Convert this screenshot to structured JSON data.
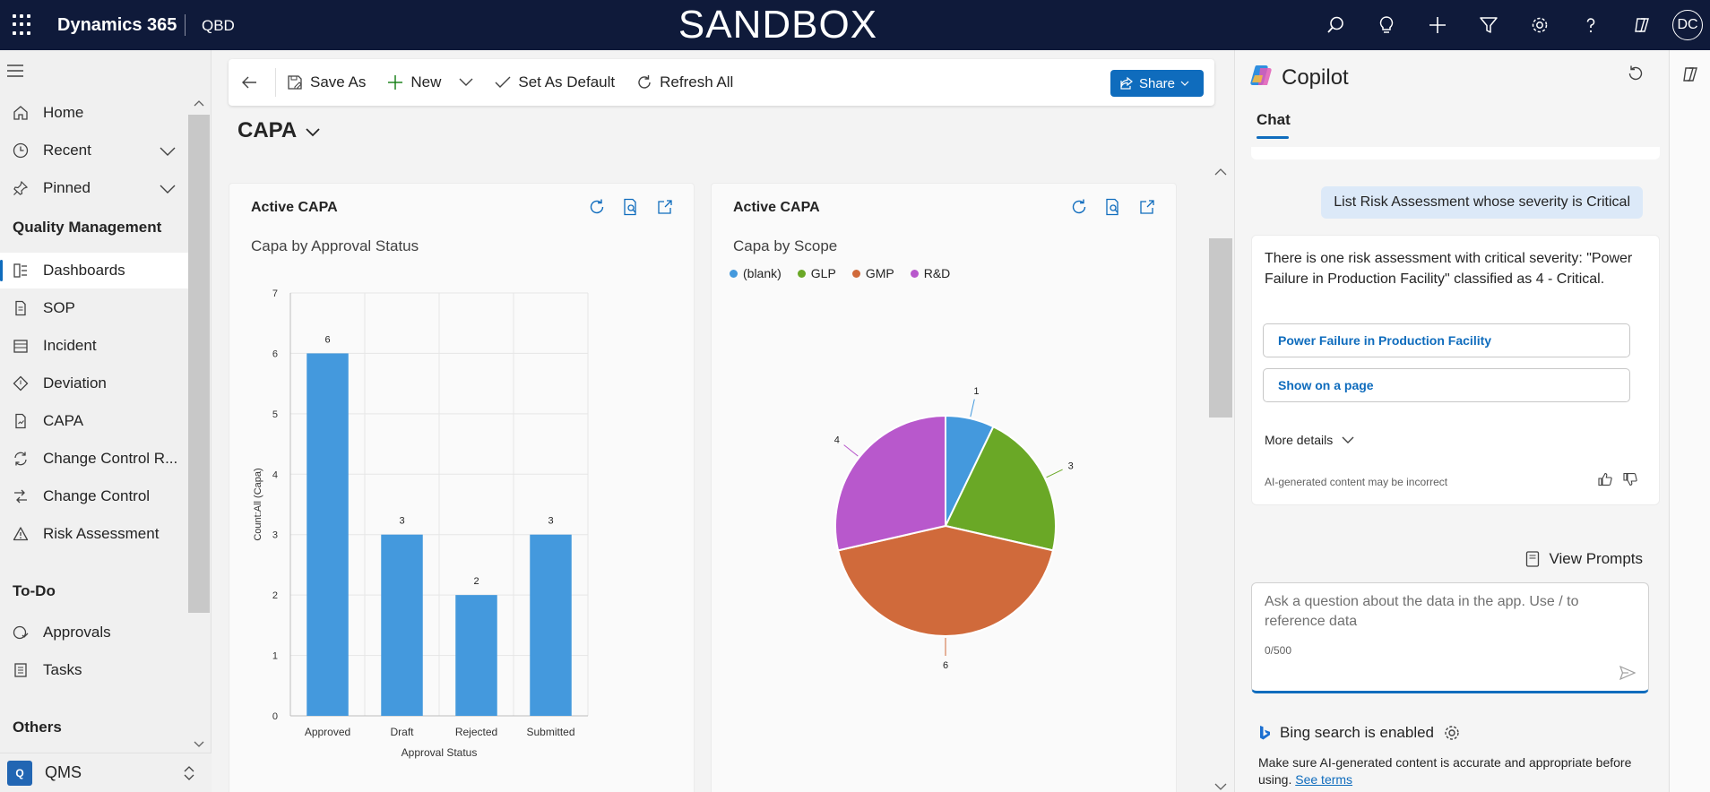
{
  "topbar": {
    "brand": "Dynamics 365",
    "area": "QBD",
    "environment": "SANDBOX",
    "avatar": "DC",
    "icons": [
      "search-icon",
      "lightbulb-icon",
      "plus-icon",
      "filter-icon",
      "gear-icon",
      "help-icon",
      "copilot-icon"
    ]
  },
  "nav": {
    "items": [
      {
        "label": "Home",
        "icon": "home-icon"
      },
      {
        "label": "Recent",
        "icon": "clock-icon"
      },
      {
        "label": "Pinned",
        "icon": "pin-icon"
      }
    ],
    "groups": [
      {
        "label": "Quality Management"
      },
      {
        "label": "To-Do"
      },
      {
        "label": "Others"
      }
    ],
    "qm_items": [
      {
        "label": "Dashboards",
        "icon": "dashboard-icon",
        "selected": true
      },
      {
        "label": "SOP",
        "icon": "document-icon"
      },
      {
        "label": "Incident",
        "icon": "calendar-icon"
      },
      {
        "label": "Deviation",
        "icon": "diamond-icon"
      },
      {
        "label": "CAPA",
        "icon": "report-icon"
      },
      {
        "label": "Change Control R...",
        "icon": "sync-icon"
      },
      {
        "label": "Change Control",
        "icon": "process-icon"
      },
      {
        "label": "Risk Assessment",
        "icon": "warning-icon"
      }
    ],
    "todo_items": [
      {
        "label": "Approvals",
        "icon": "approvals-icon"
      },
      {
        "label": "Tasks",
        "icon": "tasks-icon"
      }
    ],
    "area_switcher": {
      "badge": "Q",
      "label": "QMS"
    }
  },
  "commands": {
    "save_as": "Save As",
    "new": "New",
    "set_default": "Set As Default",
    "refresh_all": "Refresh All",
    "share": "Share"
  },
  "dashboard": {
    "title": "CAPA"
  },
  "charts": [
    {
      "title": "Active CAPA",
      "subtitle": "Capa by Approval Status"
    },
    {
      "title": "Active CAPA",
      "subtitle": "Capa by Scope"
    }
  ],
  "chart_data": [
    {
      "type": "bar",
      "title": "Capa by Approval Status",
      "categories": [
        "Approved",
        "Draft",
        "Rejected",
        "Submitted"
      ],
      "values": [
        6,
        3,
        2,
        3
      ],
      "xlabel": "Approval Status",
      "ylabel": "Count:All (Capa)",
      "ylim": [
        0,
        7
      ],
      "yticks": [
        "0",
        "1",
        "2",
        "3",
        "4",
        "5",
        "6",
        "7"
      ],
      "color": "#4499dd",
      "grid": true
    },
    {
      "type": "pie",
      "title": "Capa by Scope",
      "labels": [
        "(blank)",
        "GLP",
        "GMP",
        "R&D"
      ],
      "values": [
        1,
        3,
        6,
        4
      ],
      "colors": [
        "#4499dd",
        "#6aa826",
        "#d06a3b",
        "#b858cc"
      ],
      "legend": "top-left"
    }
  ],
  "copilot": {
    "title": "Copilot",
    "tab": "Chat",
    "user_message": "List Risk Assessment whose severity is Critical",
    "response": "There is one risk assessment with critical severity: \"Power Failure in Production Facility\" classified as 4 - Critical.",
    "link1": "Power Failure in Production Facility",
    "link2": "Show on a page",
    "more_details": "More details",
    "disclaimer": "AI-generated content may be incorrect",
    "view_prompts": "View Prompts",
    "input_placeholder": "Ask a question about the data in the app. Use / to reference data",
    "counter": "0/500",
    "bing": "Bing search is enabled",
    "footnote": "Make sure AI-generated content is accurate and appropriate before using.",
    "see_terms": "See terms"
  }
}
